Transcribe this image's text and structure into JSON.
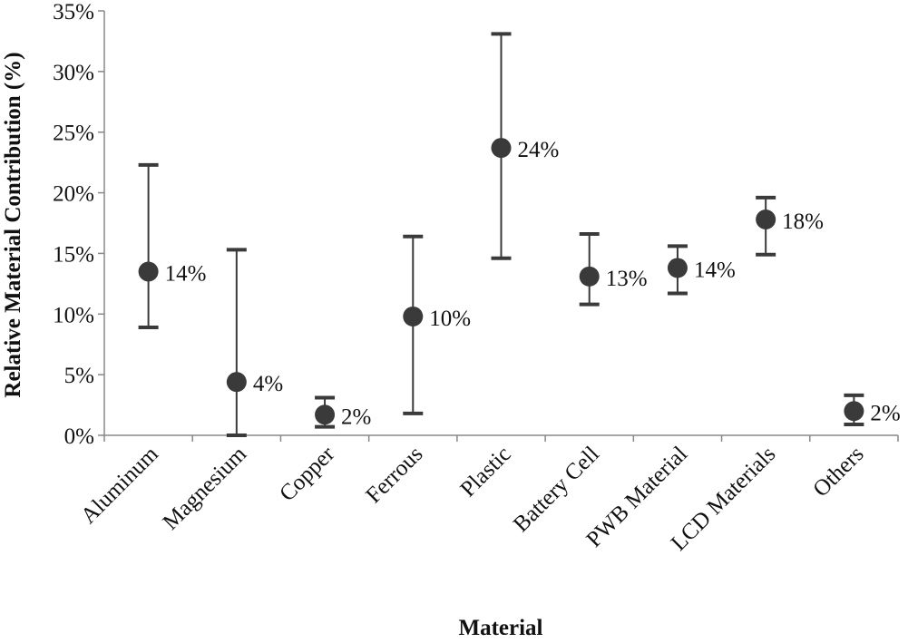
{
  "chart_data": {
    "type": "scatter",
    "title": "",
    "xlabel": "Material",
    "ylabel": "Relative Material Contribution (%)",
    "ylim": [
      0,
      35
    ],
    "y_tick_labels": [
      "0%",
      "5%",
      "10%",
      "15%",
      "20%",
      "25%",
      "30%",
      "35%"
    ],
    "grid": false,
    "legend": "none",
    "categories": [
      "Aluminum",
      "Magnesium",
      "Copper",
      "Ferrous",
      "Plastic",
      "Battery Cell",
      "PWB Material",
      "LCD Materials",
      "Others"
    ],
    "series": [
      {
        "values": [
          13.5,
          4.4,
          1.7,
          9.8,
          23.7,
          13.1,
          13.8,
          17.8,
          2.0
        ],
        "error_low": [
          8.9,
          0.0,
          0.7,
          1.8,
          14.6,
          10.8,
          11.7,
          14.9,
          0.9
        ],
        "error_high": [
          22.3,
          15.3,
          3.1,
          16.4,
          33.1,
          16.6,
          15.6,
          19.6,
          3.3
        ],
        "data_labels": [
          "14%",
          "4%",
          "2%",
          "10%",
          "24%",
          "13%",
          "14%",
          "18%",
          "2%"
        ]
      }
    ],
    "colors": {
      "marker": "#3a3a3a",
      "axis": "#888888",
      "errorbar": "#3a3a3a"
    }
  }
}
